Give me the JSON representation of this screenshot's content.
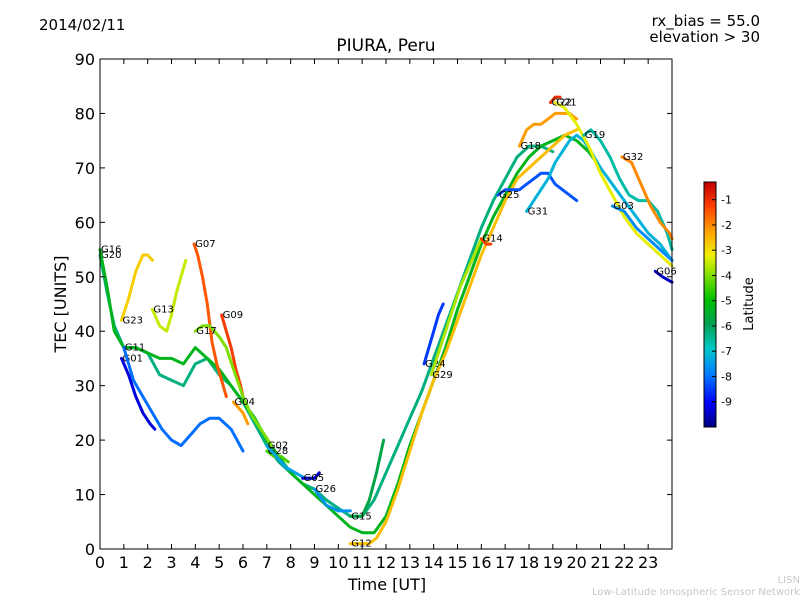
{
  "header": {
    "date": "2014/02/11",
    "rx_bias": "rx_bias = 55.0",
    "elevation": "elevation > 30",
    "title": "PIURA, Peru"
  },
  "footer": {
    "line1": "LISN",
    "line2": "Low-Latitude Ionospheric Sensor Network"
  },
  "chart_data": {
    "type": "line",
    "title": "PIURA, Peru",
    "xlabel": "Time [UT]",
    "ylabel": "TEC [UNITS]",
    "xlim": [
      0,
      24
    ],
    "ylim": [
      0,
      90
    ],
    "xticks": [
      "0",
      "1",
      "2",
      "3",
      "4",
      "5",
      "6",
      "7",
      "8",
      "9",
      "10",
      "11",
      "12",
      "13",
      "14",
      "15",
      "16",
      "17",
      "18",
      "19",
      "20",
      "21",
      "22",
      "23"
    ],
    "yticks": [
      "0",
      "10",
      "20",
      "30",
      "40",
      "50",
      "60",
      "70",
      "80",
      "90"
    ],
    "colorbar": {
      "label": "Latitude",
      "ticks": [
        "-1",
        "-2",
        "-3",
        "-4",
        "-5",
        "-6",
        "-7",
        "-8",
        "-9"
      ],
      "range": [
        -10,
        -0.3
      ],
      "colors": [
        "#00007f",
        "#0000ff",
        "#0080ff",
        "#00c8c8",
        "#00a050",
        "#00c000",
        "#80e000",
        "#f0f000",
        "#ffa000",
        "#ff4000",
        "#c00000"
      ]
    },
    "series": [
      {
        "name": "G20",
        "lat": -6.5,
        "x": [
          0.0,
          0.3,
          0.6,
          1.0,
          1.5,
          2.0,
          2.5,
          3.0,
          3.5,
          4.0,
          4.5,
          5.0,
          5.5,
          6.0,
          6.5,
          7.0,
          7.5,
          8.0,
          8.5,
          9.0,
          9.5,
          10.0,
          10.5,
          11.0,
          11.5,
          12.0,
          12.5,
          13.0,
          13.5,
          14.0,
          14.5,
          15.0,
          15.5,
          16.0,
          16.5,
          17.0,
          17.5,
          18.0,
          18.5,
          19.0
        ],
        "y": [
          54,
          47,
          41,
          37,
          37,
          36,
          32,
          31,
          30,
          34,
          35,
          32,
          30,
          27,
          23,
          19,
          16,
          14,
          12,
          11,
          9,
          7.5,
          6,
          6,
          9,
          14,
          19,
          24,
          29,
          35,
          41,
          47,
          53,
          59,
          64,
          68,
          72,
          74,
          74,
          73
        ]
      },
      {
        "name": "G16",
        "lat": -5.5,
        "x": [
          0.0,
          0.3,
          0.6,
          1.0,
          1.5,
          2.0,
          2.5,
          3.0,
          3.5,
          4.0,
          4.5,
          5.0,
          5.5,
          6.0,
          6.5,
          7.0,
          7.5,
          8.0,
          8.5,
          9.0,
          9.5,
          10.0,
          10.5,
          11.0,
          11.5,
          12.0,
          12.5,
          13.0,
          13.5,
          14.0,
          14.5,
          15.0,
          15.5,
          16.0,
          16.5,
          17.0,
          17.5,
          18.0,
          18.5,
          19.0,
          19.5,
          20.0,
          20.5,
          21.0
        ],
        "y": [
          55,
          48,
          40,
          37,
          37,
          36,
          35,
          35,
          34,
          37,
          35,
          33,
          30,
          27,
          24,
          20,
          17,
          14,
          12,
          10,
          8,
          6,
          4,
          3,
          3,
          6,
          12,
          19,
          25,
          31,
          37,
          44,
          50,
          56,
          61,
          65,
          69,
          72,
          74,
          75,
          76,
          75,
          73,
          70
        ]
      },
      {
        "name": "G23",
        "lat": -2.8,
        "x": [
          0.9,
          1.2,
          1.5,
          1.8,
          2.0,
          2.2
        ],
        "y": [
          42,
          46,
          51,
          54,
          54,
          53
        ]
      },
      {
        "name": "G13",
        "lat": -3.6,
        "x": [
          2.2,
          2.5,
          2.8,
          3.0,
          3.2,
          3.4,
          3.6
        ],
        "y": [
          44,
          41,
          40,
          43,
          47,
          50,
          53
        ]
      },
      {
        "name": "G07",
        "lat": -1.5,
        "x": [
          3.95,
          4.1,
          4.3,
          4.5,
          4.7,
          4.9,
          5.1,
          5.3
        ],
        "y": [
          56,
          54,
          50,
          45,
          38,
          34,
          31,
          28
        ]
      },
      {
        "name": "G09",
        "lat": -1.2,
        "x": [
          5.1,
          5.3,
          5.5,
          5.7,
          5.9,
          6.0
        ],
        "y": [
          43,
          40,
          37,
          33,
          30,
          28
        ]
      },
      {
        "name": "G17",
        "lat": -4.2,
        "x": [
          4.0,
          4.3,
          4.6,
          5.0,
          5.3,
          5.6,
          6.0,
          6.3,
          6.6,
          6.9,
          7.2
        ],
        "y": [
          40,
          41,
          41,
          39,
          37,
          33,
          28,
          25,
          23,
          21,
          19
        ]
      },
      {
        "name": "G04",
        "lat": -2.2,
        "x": [
          5.6,
          5.8,
          6.0,
          6.2
        ],
        "y": [
          27,
          26,
          25,
          23
        ]
      },
      {
        "name": "G01",
        "lat": -9.3,
        "x": [
          0.9,
          1.2,
          1.5,
          1.8,
          2.1,
          2.3
        ],
        "y": [
          35,
          32,
          28,
          25,
          23,
          22
        ]
      },
      {
        "name": "G11",
        "lat": -8.2,
        "x": [
          1.0,
          1.4,
          1.8,
          2.2,
          2.6,
          3.0,
          3.4,
          3.8,
          4.2,
          4.6,
          5.0,
          5.5,
          6.0
        ],
        "y": [
          37,
          31,
          28,
          25,
          22,
          20,
          19,
          21,
          23,
          24,
          24,
          22,
          18
        ]
      },
      {
        "name": "G28",
        "lat": -4.6,
        "x": [
          7.0,
          7.3,
          7.6,
          7.9
        ],
        "y": [
          18,
          17,
          17,
          16
        ]
      },
      {
        "name": "G02",
        "lat": -7.6,
        "x": [
          7.0,
          7.4,
          7.8,
          8.2,
          8.6,
          9.0
        ],
        "y": [
          19,
          17,
          15,
          14,
          13,
          13
        ]
      },
      {
        "name": "G05",
        "lat": -9.4,
        "x": [
          8.5,
          8.8,
          9.0,
          9.2
        ],
        "y": [
          13,
          13,
          13,
          14
        ]
      },
      {
        "name": "G26",
        "lat": -7.8,
        "x": [
          9.0,
          9.5,
          10.0,
          10.5
        ],
        "y": [
          11,
          8,
          7,
          7
        ]
      },
      {
        "name": "G15",
        "lat": -6.0,
        "x": [
          10.5,
          11.0,
          11.3,
          11.6,
          11.9
        ],
        "y": [
          6,
          6,
          9,
          14,
          20
        ]
      },
      {
        "name": "G12",
        "lat": -2.6,
        "x": [
          10.5,
          11.0,
          11.3,
          11.6,
          12.0,
          12.5,
          13.0,
          13.5,
          14.0,
          14.5,
          15.0,
          15.5,
          16.0,
          16.5,
          17.0,
          17.5,
          18.0,
          18.5,
          19.0,
          19.5,
          20.0
        ],
        "y": [
          1,
          1,
          1,
          2,
          5,
          11,
          18,
          25,
          31,
          36,
          42,
          48,
          54,
          59,
          64,
          68,
          70,
          72,
          74,
          76,
          77
        ]
      },
      {
        "name": "G24",
        "lat": -8.6,
        "x": [
          13.6,
          13.8,
          14.0,
          14.2,
          14.4
        ],
        "y": [
          34,
          37,
          40,
          43,
          45
        ]
      },
      {
        "name": "G29",
        "lat": -3.8,
        "x": [
          13.9,
          14.2,
          14.5,
          14.8,
          15.1,
          15.5,
          16.0
        ],
        "y": [
          32,
          36,
          40,
          44,
          48,
          52,
          57
        ]
      },
      {
        "name": "G14",
        "lat": -1.3,
        "x": [
          16.0,
          16.2,
          16.4
        ],
        "y": [
          57,
          56,
          56
        ]
      },
      {
        "name": "G25",
        "lat": -8.4,
        "x": [
          16.7,
          17.0,
          17.3,
          17.6,
          17.9,
          18.2,
          18.5,
          18.8,
          19.1,
          19.4,
          19.7,
          20.0
        ],
        "y": [
          65,
          66,
          66,
          66,
          67,
          68,
          69,
          69,
          67,
          66,
          65,
          64
        ]
      },
      {
        "name": "G31",
        "lat": -7.4,
        "x": [
          17.9,
          18.2,
          18.5,
          18.8,
          19.1,
          19.4,
          19.7,
          20.0,
          20.3,
          20.6,
          21.0,
          21.5,
          22.0,
          22.5,
          23.0,
          23.5,
          24.0
        ],
        "y": [
          62,
          64,
          66,
          68,
          71,
          73,
          75,
          76,
          75,
          73,
          70,
          67,
          64,
          61,
          58,
          56,
          53
        ]
      },
      {
        "name": "G18",
        "lat": -2.2,
        "x": [
          17.6,
          17.9,
          18.2,
          18.5,
          18.8,
          19.1,
          19.4,
          19.7,
          20.0
        ],
        "y": [
          74,
          77,
          78,
          78,
          79,
          80,
          80,
          80,
          79
        ]
      },
      {
        "name": "G22",
        "lat": -1.0,
        "x": [
          18.9,
          19.1,
          19.3
        ],
        "y": [
          82,
          83,
          83
        ]
      },
      {
        "name": "G21",
        "lat": -3.3,
        "x": [
          19.1,
          19.5,
          20.0,
          20.5,
          21.0,
          21.5,
          22.0,
          22.5,
          23.0,
          23.5,
          24.0
        ],
        "y": [
          82,
          81,
          78,
          74,
          69,
          65,
          61,
          58,
          56,
          54,
          52
        ]
      },
      {
        "name": "G19",
        "lat": -6.8,
        "x": [
          20.3,
          20.6,
          21.0,
          21.4,
          21.8,
          22.2,
          22.6,
          23.0,
          23.4,
          23.8,
          24.0
        ],
        "y": [
          76,
          77,
          75,
          72,
          68,
          65,
          64,
          64,
          62,
          58,
          55
        ]
      },
      {
        "name": "G32",
        "lat": -2.0,
        "x": [
          21.9,
          22.3,
          22.7,
          23.1,
          23.5,
          23.9,
          24.0
        ],
        "y": [
          72,
          71,
          67,
          63,
          60,
          58,
          57
        ]
      },
      {
        "name": "G03",
        "lat": -7.9,
        "x": [
          21.5,
          22.0,
          22.5,
          23.0,
          23.5,
          24.0
        ],
        "y": [
          63,
          62,
          59,
          57,
          55,
          53
        ]
      },
      {
        "name": "G06",
        "lat": -9.5,
        "x": [
          23.3,
          23.6,
          24.0
        ],
        "y": [
          51,
          50,
          49
        ]
      }
    ]
  }
}
